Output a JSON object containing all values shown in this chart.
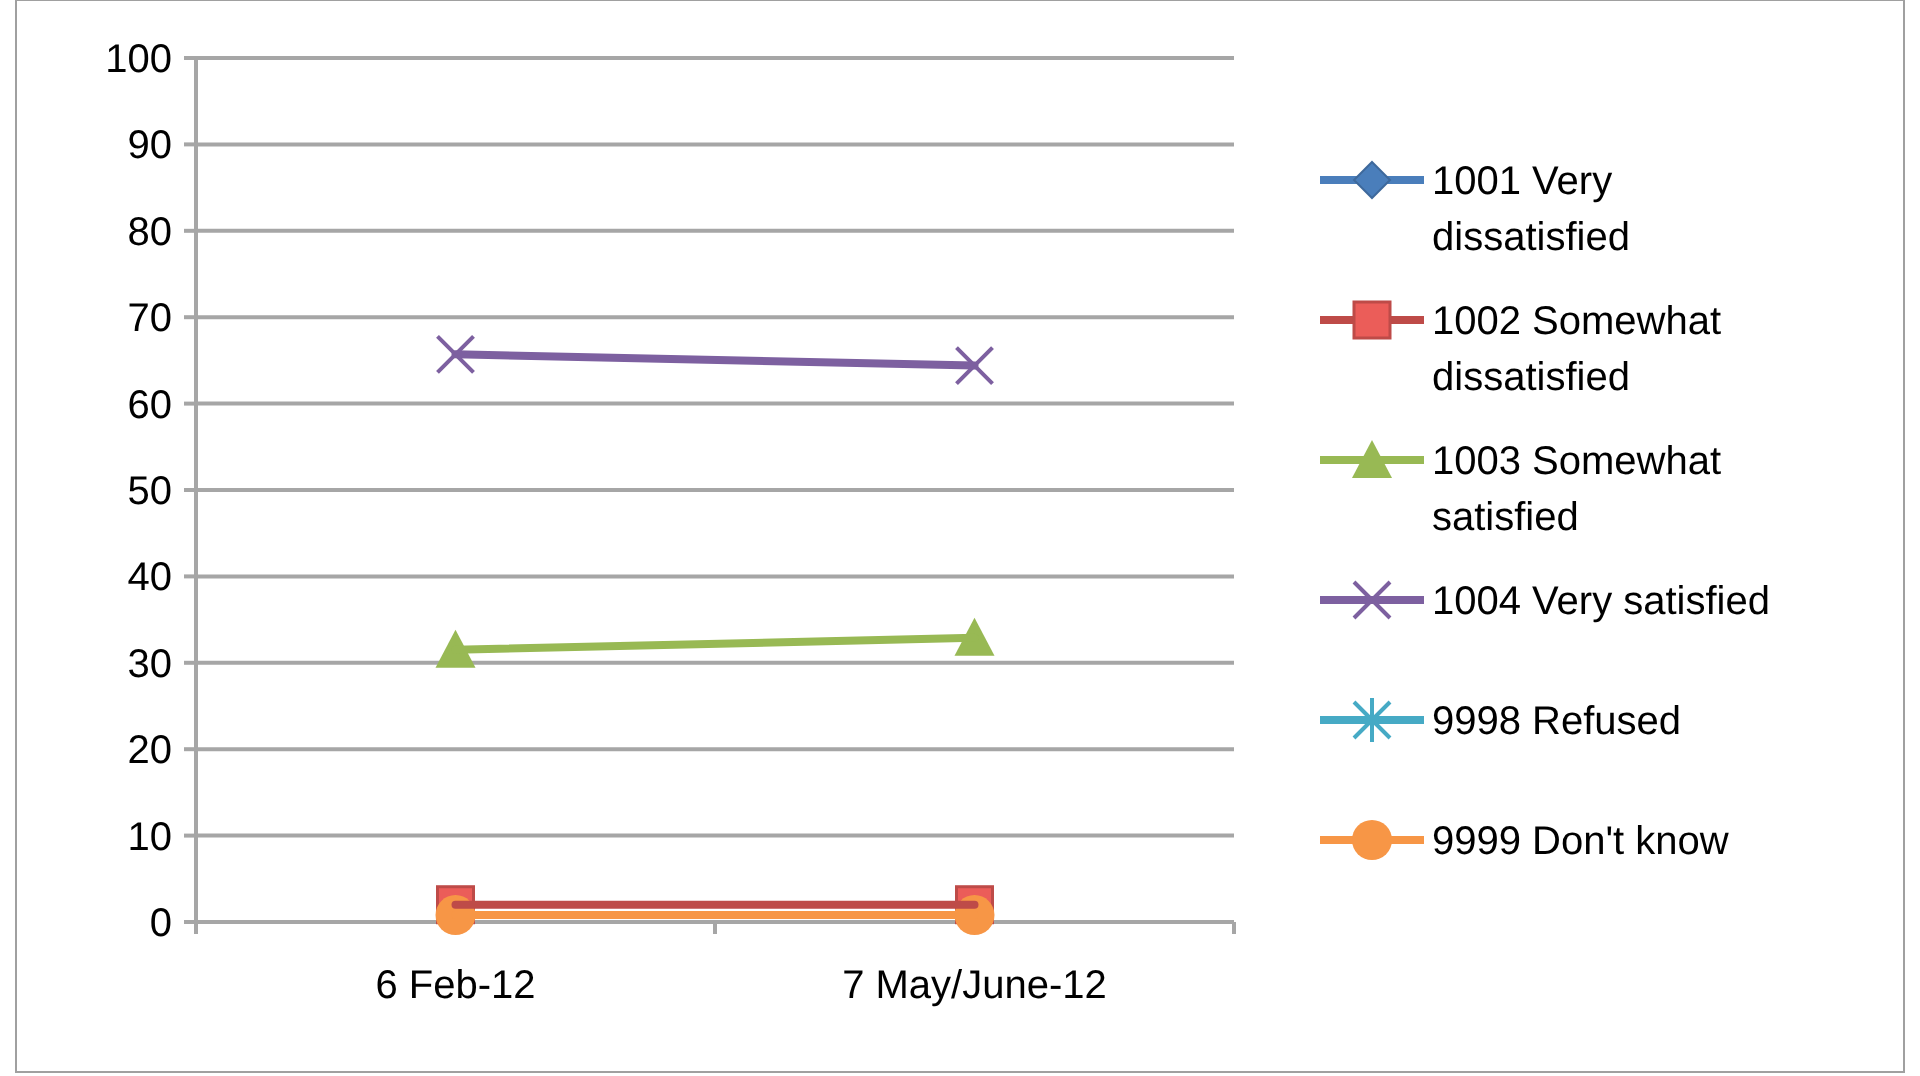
{
  "chart_data": {
    "type": "line",
    "categories": [
      "6 Feb-12",
      "7 May/June-12"
    ],
    "ylim": [
      0,
      100
    ],
    "yticks": [
      0,
      10,
      20,
      30,
      40,
      50,
      60,
      70,
      80,
      90,
      100
    ],
    "grid": "y",
    "legend": "right",
    "series": [
      {
        "name": "1001 Very dissatisfied",
        "color": "#4a7ebb",
        "marker": "diamond",
        "values": [
          null,
          null
        ]
      },
      {
        "name": "1002 Somewhat dissatisfied",
        "color": "#be4b48",
        "marker": "square",
        "values": [
          2.0,
          2.0
        ]
      },
      {
        "name": "1003 Somewhat satisfied",
        "color": "#98b954",
        "marker": "triangle",
        "values": [
          31.5,
          32.9
        ]
      },
      {
        "name": "1004 Very satisfied",
        "color": "#7d60a0",
        "marker": "cross",
        "values": [
          65.7,
          64.4
        ]
      },
      {
        "name": "9998 Refused",
        "color": "#46aac5",
        "marker": "star",
        "values": [
          null,
          null
        ]
      },
      {
        "name": "9999 Don't know",
        "color": "#f79646",
        "marker": "circle",
        "values": [
          0.8,
          0.8
        ]
      }
    ]
  }
}
